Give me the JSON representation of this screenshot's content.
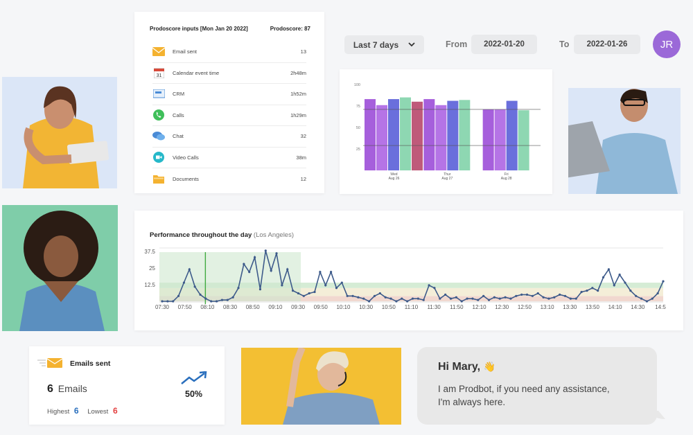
{
  "inputs": {
    "title": "Prodoscore inputs [Mon Jan 20 2022]",
    "score": "Prodoscore: 87",
    "rows": [
      {
        "icon": "envelope-icon",
        "label": "Email sent",
        "value": "13"
      },
      {
        "icon": "calendar-icon",
        "label": "Calendar event time",
        "value": "2h48m"
      },
      {
        "icon": "crm-icon",
        "label": "CRM",
        "value": "1h52m"
      },
      {
        "icon": "phone-icon",
        "label": "Calls",
        "value": "1h29m"
      },
      {
        "icon": "chat-icon",
        "label": "Chat",
        "value": "32"
      },
      {
        "icon": "video-icon",
        "label": "Video Calls",
        "value": "38m"
      },
      {
        "icon": "folder-icon",
        "label": "Documents",
        "value": "12"
      }
    ]
  },
  "filters": {
    "range": "Last 7 days",
    "from_label": "From",
    "from_value": "2022-01-20",
    "to_label": "To",
    "to_value": "2022-01-26"
  },
  "user": {
    "initials": "JR",
    "avatar_color": "#9b69d8"
  },
  "chart_data": [
    {
      "type": "bar",
      "categories": [
        "Wed\nAug 26",
        "Thur\nAug 27",
        "Fri\nAug 28"
      ],
      "category_lines": [
        [
          "Wed",
          "Aug 26"
        ],
        [
          "Thur",
          "Aug 27"
        ],
        [
          "Fri",
          "Aug 28"
        ]
      ],
      "series": [
        {
          "color": "#a65fdc",
          "values": [
            83,
            83,
            71
          ]
        },
        {
          "color": "#b574e6",
          "values": [
            76,
            76,
            71
          ]
        },
        {
          "color": "#6a6fdc",
          "values": [
            83,
            81,
            81
          ]
        },
        {
          "color": "#8ed7b2",
          "values": [
            85,
            82,
            70
          ]
        },
        {
          "color": "#bf5a7a",
          "values": [
            80,
            null,
            null
          ]
        }
      ],
      "yticks": [
        25,
        50,
        75,
        100
      ],
      "ylim": [
        0,
        100
      ],
      "reference_lines": [
        71,
        29
      ]
    },
    {
      "type": "line",
      "title": "Performance throughout the day",
      "subtitle": "(Los Angeles)",
      "x": [
        "07:30",
        "07:50",
        "08:10",
        "08:30",
        "08:50",
        "09:10",
        "09:30",
        "09:50",
        "10:10",
        "10:30",
        "10:50",
        "11:10",
        "11:30",
        "11:50",
        "12:10",
        "12:30",
        "12:50",
        "13:10",
        "13:30",
        "13:50",
        "14:10",
        "14:30",
        "14:5"
      ],
      "yticks": [
        12.5,
        25,
        37.5
      ],
      "ylim": [
        0,
        40
      ],
      "bands": [
        {
          "from": 0,
          "to": 4,
          "color": "#f1d8cf"
        },
        {
          "from": 4,
          "to": 10,
          "color": "#f4eed8"
        },
        {
          "from": 10,
          "to": 14,
          "color": "#d5ecd5"
        }
      ],
      "highlight_range": [
        "07:30",
        "09:30"
      ],
      "marker": "08:10",
      "line_color": "#3d5a8a",
      "series": [
        {
          "points": [
            [
              0,
              0
            ],
            [
              1,
              0
            ],
            [
              2,
              0
            ],
            [
              3,
              4
            ],
            [
              4,
              14
            ],
            [
              5,
              24
            ],
            [
              6,
              11
            ],
            [
              7,
              5
            ],
            [
              8,
              2
            ],
            [
              9,
              0
            ],
            [
              10,
              0
            ],
            [
              11,
              1
            ],
            [
              12,
              1
            ],
            [
              13,
              3
            ],
            [
              14,
              10
            ],
            [
              15,
              28
            ],
            [
              16,
              22
            ],
            [
              17,
              33
            ],
            [
              18,
              9
            ],
            [
              19,
              38
            ],
            [
              20,
              23
            ],
            [
              21,
              36
            ],
            [
              22,
              12
            ],
            [
              23,
              24
            ],
            [
              24,
              8
            ],
            [
              25,
              6
            ],
            [
              26,
              4
            ],
            [
              27,
              6
            ],
            [
              28,
              7
            ],
            [
              29,
              22
            ],
            [
              30,
              12
            ],
            [
              31,
              22
            ],
            [
              32,
              10
            ],
            [
              33,
              14
            ],
            [
              34,
              4
            ],
            [
              35,
              4
            ],
            [
              36,
              3
            ],
            [
              37,
              2
            ],
            [
              38,
              0
            ],
            [
              39,
              4
            ],
            [
              40,
              6
            ],
            [
              41,
              3
            ],
            [
              42,
              2
            ],
            [
              43,
              0
            ],
            [
              44,
              2
            ],
            [
              45,
              0
            ],
            [
              46,
              2
            ],
            [
              47,
              2
            ],
            [
              48,
              1
            ],
            [
              49,
              12
            ],
            [
              50,
              10
            ],
            [
              51,
              2
            ],
            [
              52,
              5
            ],
            [
              53,
              2
            ],
            [
              54,
              3
            ],
            [
              55,
              0
            ],
            [
              56,
              2
            ],
            [
              57,
              2
            ],
            [
              58,
              1
            ],
            [
              59,
              4
            ],
            [
              60,
              1
            ],
            [
              61,
              3
            ],
            [
              62,
              2
            ],
            [
              63,
              3
            ],
            [
              64,
              2
            ],
            [
              65,
              4
            ],
            [
              66,
              5
            ],
            [
              67,
              5
            ],
            [
              68,
              4
            ],
            [
              69,
              6
            ],
            [
              70,
              3
            ],
            [
              71,
              2
            ],
            [
              72,
              3
            ],
            [
              73,
              5
            ],
            [
              74,
              4
            ],
            [
              75,
              2
            ],
            [
              76,
              2
            ],
            [
              77,
              7
            ],
            [
              78,
              8
            ],
            [
              79,
              10
            ],
            [
              80,
              8
            ],
            [
              81,
              18
            ],
            [
              82,
              24
            ],
            [
              83,
              12
            ],
            [
              84,
              20
            ],
            [
              85,
              14
            ],
            [
              86,
              8
            ],
            [
              87,
              4
            ],
            [
              88,
              2
            ],
            [
              89,
              0
            ],
            [
              90,
              2
            ],
            [
              91,
              6
            ],
            [
              92,
              15
            ]
          ]
        }
      ]
    }
  ],
  "emails": {
    "title": "Emails sent",
    "count": "6",
    "unit": "Emails",
    "highest_label": "Highest",
    "highest_value": "6",
    "lowest_label": "Lowest",
    "lowest_value": "6",
    "trend": "50%",
    "accent": "#2a6fbd",
    "low_color": "#e34040"
  },
  "chat": {
    "greeting": "Hi Mary,",
    "emoji": "👋",
    "line1": "I am Prodbot, if you need any assistance,",
    "line2": "I'm always here."
  }
}
